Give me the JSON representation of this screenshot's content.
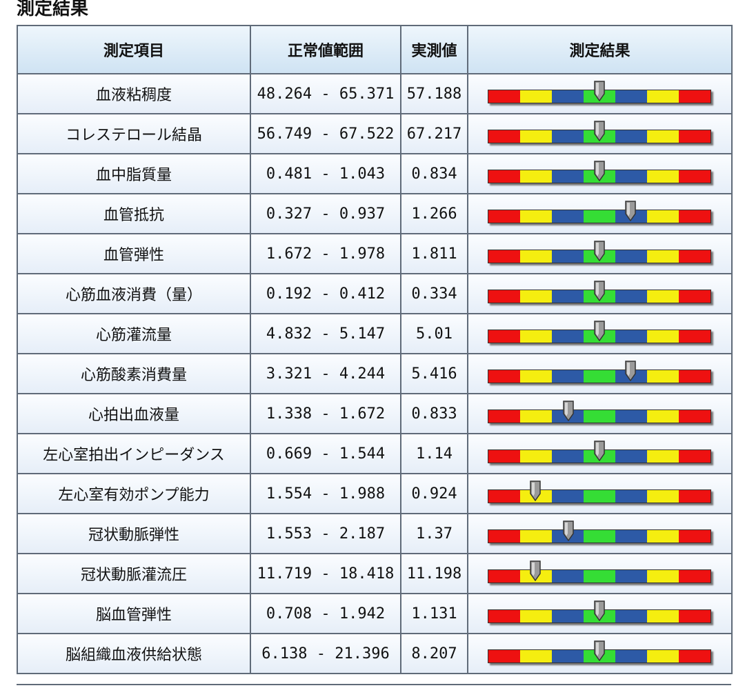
{
  "title": "測定結果",
  "headers": {
    "item": "測定項目",
    "normal_range": "正常値範囲",
    "measured": "実測値",
    "result": "測定結果"
  },
  "colors": {
    "red": "#ee1111",
    "yellow": "#f5ee10",
    "blue": "#2d5aa6",
    "green": "#35dd35",
    "marker": "#9a9a9a"
  },
  "gauge_icon": "gray-pointer-icon",
  "rows": [
    {
      "item": "血液粘稠度",
      "range": "48.264 - 65.371",
      "value": "57.188",
      "level": 0.5
    },
    {
      "item": "コレステロール結晶",
      "range": "56.749 - 67.522",
      "value": "67.217",
      "level": 0.5
    },
    {
      "item": "血中脂質量",
      "range": "0.481 - 1.043",
      "value": "0.834",
      "level": 0.5
    },
    {
      "item": "血管抵抗",
      "range": "0.327 - 0.937",
      "value": "1.266",
      "level": 0.64
    },
    {
      "item": "血管弾性",
      "range": "1.672 - 1.978",
      "value": "1.811",
      "level": 0.5
    },
    {
      "item": "心筋血液消費（量）",
      "range": "0.192 - 0.412",
      "value": "0.334",
      "level": 0.5
    },
    {
      "item": "心筋灌流量",
      "range": "4.832 - 5.147",
      "value": "5.01",
      "level": 0.5
    },
    {
      "item": "心筋酸素消費量",
      "range": "3.321 - 4.244",
      "value": "5.416",
      "level": 0.64
    },
    {
      "item": "心拍出血液量",
      "range": "1.338 - 1.672",
      "value": "0.833",
      "level": 0.36
    },
    {
      "item": "左心室拍出インピーダンス",
      "range": "0.669 - 1.544",
      "value": "1.14",
      "level": 0.5
    },
    {
      "item": "左心室有効ポンプ能力",
      "range": "1.554 - 1.988",
      "value": "0.924",
      "level": 0.21
    },
    {
      "item": "冠状動脈弾性",
      "range": "1.553 - 2.187",
      "value": "1.37",
      "level": 0.36
    },
    {
      "item": "冠状動脈灌流圧",
      "range": "11.719 - 18.418",
      "value": "11.198",
      "level": 0.21
    },
    {
      "item": "脳血管弾性",
      "range": "0.708 - 1.942",
      "value": "1.131",
      "level": 0.5
    },
    {
      "item": "脳組織血液供給状態",
      "range": "6.138 - 21.396",
      "value": "8.207",
      "level": 0.5
    }
  ]
}
